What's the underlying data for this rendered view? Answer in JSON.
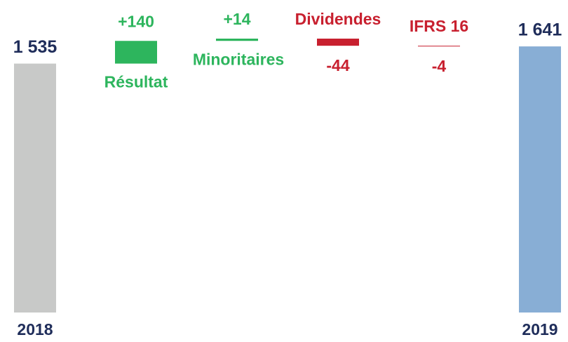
{
  "chart_data": {
    "type": "waterfall",
    "categories": [
      "2018",
      "Résultat",
      "Minoritaires",
      "Dividendes",
      "IFRS 16",
      "2019"
    ],
    "values": [
      1535,
      140,
      14,
      -44,
      -4,
      1641
    ],
    "value_labels": [
      "1 535",
      "+140",
      "+14",
      "-44",
      "-4",
      "1 641"
    ],
    "totals": [
      true,
      false,
      false,
      false,
      false,
      true
    ],
    "colors": [
      "#c8c9c8",
      "#2db55d",
      "#2db55d",
      "#c8202f",
      "#c8202f",
      "#88aed5"
    ],
    "label_colors": [
      "#1f2d5a",
      "#2db55d",
      "#2db55d",
      "#c8202f",
      "#c8202f",
      "#1f2d5a"
    ]
  }
}
